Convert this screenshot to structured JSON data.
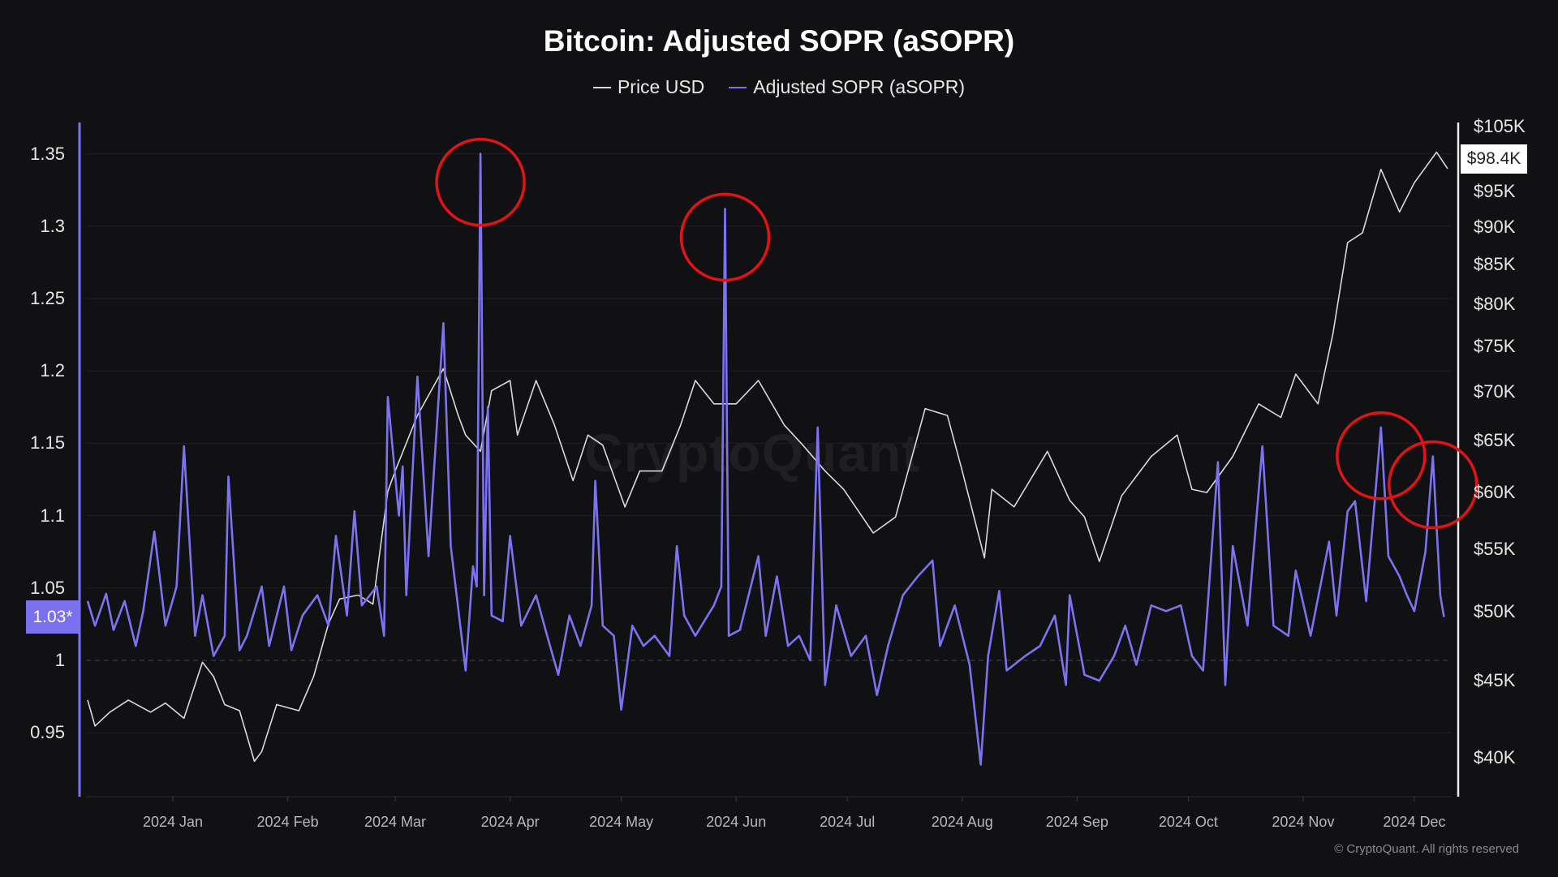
{
  "chart_data": {
    "type": "line",
    "title": "Bitcoin: Adjusted SOPR (aSOPR)",
    "legend_position": "top-center",
    "grid": true,
    "x_ticks": [
      "2024 Jan",
      "2024 Feb",
      "2024 Mar",
      "2024 Apr",
      "2024 May",
      "2024 Jun",
      "2024 Jul",
      "2024 Aug",
      "2024 Sep",
      "2024 Oct",
      "2024 Nov",
      "2024 Dec"
    ],
    "x_tick_dates": [
      "2024-01-01",
      "2024-02-01",
      "2024-03-01",
      "2024-04-01",
      "2024-05-01",
      "2024-06-01",
      "2024-07-01",
      "2024-08-01",
      "2024-09-01",
      "2024-10-01",
      "2024-11-01",
      "2024-12-01"
    ],
    "xlim": [
      "2023-12-09",
      "2024-12-10"
    ],
    "left_axis": {
      "scale": "linear",
      "ylim": [
        0.93,
        1.37
      ],
      "ticks": [
        0.95,
        1,
        1.05,
        1.1,
        1.15,
        1.2,
        1.25,
        1.3,
        1.35
      ],
      "tick_labels": [
        "0.95",
        "1",
        "1.05",
        "1.1",
        "1.15",
        "1.2",
        "1.25",
        "1.3",
        "1.35"
      ],
      "reference_line": 1
    },
    "right_axis": {
      "scale": "log",
      "ylim": [
        37000,
        107000
      ],
      "ticks": [
        40000,
        45000,
        50000,
        55000,
        60000,
        65000,
        70000,
        75000,
        80000,
        85000,
        90000,
        95000,
        105000
      ],
      "tick_labels": [
        "$40K",
        "$45K",
        "$50K",
        "$55K",
        "$60K",
        "$65K",
        "$70K",
        "$75K",
        "$80K",
        "$85K",
        "$90K",
        "$95K",
        "$105K"
      ]
    },
    "current_labels": {
      "asopr": "1.03*",
      "price": "$98.4K"
    },
    "series": [
      {
        "name": "Price USD",
        "axis": "right",
        "color": "#d9d9dc",
        "points": [
          [
            "2023-12-09",
            43700
          ],
          [
            "2023-12-11",
            42000
          ],
          [
            "2023-12-15",
            42900
          ],
          [
            "2023-12-20",
            43700
          ],
          [
            "2023-12-26",
            42900
          ],
          [
            "2023-12-30",
            43500
          ],
          [
            "2024-01-04",
            42500
          ],
          [
            "2024-01-09",
            46300
          ],
          [
            "2024-01-12",
            45300
          ],
          [
            "2024-01-15",
            43400
          ],
          [
            "2024-01-19",
            43000
          ],
          [
            "2024-01-23",
            39800
          ],
          [
            "2024-01-25",
            40400
          ],
          [
            "2024-01-29",
            43400
          ],
          [
            "2024-02-04",
            43000
          ],
          [
            "2024-02-08",
            45300
          ],
          [
            "2024-02-12",
            49100
          ],
          [
            "2024-02-15",
            51000
          ],
          [
            "2024-02-20",
            51300
          ],
          [
            "2024-02-24",
            50600
          ],
          [
            "2024-02-28",
            60100
          ],
          [
            "2024-03-01",
            62000
          ],
          [
            "2024-03-07",
            67500
          ],
          [
            "2024-03-14",
            72500
          ],
          [
            "2024-03-18",
            67500
          ],
          [
            "2024-03-20",
            65500
          ],
          [
            "2024-03-24",
            63900
          ],
          [
            "2024-03-27",
            70100
          ],
          [
            "2024-04-01",
            71200
          ],
          [
            "2024-04-03",
            65500
          ],
          [
            "2024-04-08",
            71200
          ],
          [
            "2024-04-13",
            66500
          ],
          [
            "2024-04-18",
            61100
          ],
          [
            "2024-04-22",
            65500
          ],
          [
            "2024-04-26",
            64500
          ],
          [
            "2024-05-02",
            58700
          ],
          [
            "2024-05-06",
            62000
          ],
          [
            "2024-05-12",
            62000
          ],
          [
            "2024-05-17",
            66500
          ],
          [
            "2024-05-21",
            71200
          ],
          [
            "2024-05-26",
            68700
          ],
          [
            "2024-06-01",
            68700
          ],
          [
            "2024-06-07",
            71200
          ],
          [
            "2024-06-14",
            66500
          ],
          [
            "2024-06-19",
            64500
          ],
          [
            "2024-06-25",
            62000
          ],
          [
            "2024-06-30",
            60300
          ],
          [
            "2024-07-08",
            56400
          ],
          [
            "2024-07-14",
            57800
          ],
          [
            "2024-07-22",
            68200
          ],
          [
            "2024-07-28",
            67500
          ],
          [
            "2024-08-01",
            62000
          ],
          [
            "2024-08-07",
            54300
          ],
          [
            "2024-08-09",
            60300
          ],
          [
            "2024-08-15",
            58700
          ],
          [
            "2024-08-24",
            63900
          ],
          [
            "2024-08-30",
            59300
          ],
          [
            "2024-09-03",
            57800
          ],
          [
            "2024-09-07",
            54000
          ],
          [
            "2024-09-13",
            59700
          ],
          [
            "2024-09-21",
            63400
          ],
          [
            "2024-09-28",
            65500
          ],
          [
            "2024-10-02",
            60300
          ],
          [
            "2024-10-06",
            60000
          ],
          [
            "2024-10-13",
            63400
          ],
          [
            "2024-10-20",
            68700
          ],
          [
            "2024-10-26",
            67300
          ],
          [
            "2024-10-30",
            71900
          ],
          [
            "2024-11-05",
            68700
          ],
          [
            "2024-11-09",
            76400
          ],
          [
            "2024-11-13",
            87900
          ],
          [
            "2024-11-17",
            89200
          ],
          [
            "2024-11-22",
            98300
          ],
          [
            "2024-11-27",
            92100
          ],
          [
            "2024-12-01",
            96300
          ],
          [
            "2024-12-07",
            100900
          ],
          [
            "2024-12-10",
            98400
          ]
        ]
      },
      {
        "name": "Adjusted SOPR (aSOPR)",
        "axis": "left",
        "color": "#7d72f0",
        "points": [
          [
            "2023-12-09",
            1.041
          ],
          [
            "2023-12-11",
            1.024
          ],
          [
            "2023-12-14",
            1.046
          ],
          [
            "2023-12-16",
            1.021
          ],
          [
            "2023-12-19",
            1.041
          ],
          [
            "2023-12-22",
            1.01
          ],
          [
            "2023-12-24",
            1.034
          ],
          [
            "2023-12-27",
            1.089
          ],
          [
            "2023-12-30",
            1.024
          ],
          [
            "2024-01-02",
            1.051
          ],
          [
            "2024-01-04",
            1.148
          ],
          [
            "2024-01-07",
            1.017
          ],
          [
            "2024-01-09",
            1.045
          ],
          [
            "2024-01-12",
            1.003
          ],
          [
            "2024-01-15",
            1.017
          ],
          [
            "2024-01-16",
            1.127
          ],
          [
            "2024-01-19",
            1.007
          ],
          [
            "2024-01-21",
            1.017
          ],
          [
            "2024-01-25",
            1.051
          ],
          [
            "2024-01-27",
            1.01
          ],
          [
            "2024-01-31",
            1.051
          ],
          [
            "2024-02-02",
            1.007
          ],
          [
            "2024-02-05",
            1.031
          ],
          [
            "2024-02-09",
            1.045
          ],
          [
            "2024-02-12",
            1.024
          ],
          [
            "2024-02-14",
            1.086
          ],
          [
            "2024-02-17",
            1.031
          ],
          [
            "2024-02-19",
            1.103
          ],
          [
            "2024-02-21",
            1.038
          ],
          [
            "2024-02-25",
            1.051
          ],
          [
            "2024-02-27",
            1.017
          ],
          [
            "2024-02-28",
            1.182
          ],
          [
            "2024-03-02",
            1.1
          ],
          [
            "2024-03-03",
            1.134
          ],
          [
            "2024-03-04",
            1.045
          ],
          [
            "2024-03-07",
            1.196
          ],
          [
            "2024-03-10",
            1.072
          ],
          [
            "2024-03-14",
            1.233
          ],
          [
            "2024-03-16",
            1.079
          ],
          [
            "2024-03-20",
            0.993
          ],
          [
            "2024-03-22",
            1.065
          ],
          [
            "2024-03-23",
            1.051
          ],
          [
            "2024-03-24",
            1.35
          ],
          [
            "2024-03-25",
            1.045
          ],
          [
            "2024-03-26",
            1.175
          ],
          [
            "2024-03-27",
            1.031
          ],
          [
            "2024-03-30",
            1.027
          ],
          [
            "2024-04-01",
            1.086
          ],
          [
            "2024-04-04",
            1.024
          ],
          [
            "2024-04-08",
            1.045
          ],
          [
            "2024-04-11",
            1.017
          ],
          [
            "2024-04-14",
            0.99
          ],
          [
            "2024-04-17",
            1.031
          ],
          [
            "2024-04-20",
            1.01
          ],
          [
            "2024-04-23",
            1.038
          ],
          [
            "2024-04-24",
            1.124
          ],
          [
            "2024-04-26",
            1.024
          ],
          [
            "2024-04-29",
            1.017
          ],
          [
            "2024-05-01",
            0.966
          ],
          [
            "2024-05-04",
            1.024
          ],
          [
            "2024-05-07",
            1.01
          ],
          [
            "2024-05-10",
            1.017
          ],
          [
            "2024-05-14",
            1.003
          ],
          [
            "2024-05-16",
            1.079
          ],
          [
            "2024-05-18",
            1.031
          ],
          [
            "2024-05-21",
            1.017
          ],
          [
            "2024-05-26",
            1.038
          ],
          [
            "2024-05-28",
            1.051
          ],
          [
            "2024-05-29",
            1.312
          ],
          [
            "2024-05-30",
            1.017
          ],
          [
            "2024-06-02",
            1.021
          ],
          [
            "2024-06-07",
            1.072
          ],
          [
            "2024-06-09",
            1.017
          ],
          [
            "2024-06-12",
            1.058
          ],
          [
            "2024-06-15",
            1.01
          ],
          [
            "2024-06-18",
            1.017
          ],
          [
            "2024-06-21",
            1.0
          ],
          [
            "2024-06-23",
            1.161
          ],
          [
            "2024-06-25",
            0.983
          ],
          [
            "2024-06-28",
            1.038
          ],
          [
            "2024-07-02",
            1.003
          ],
          [
            "2024-07-06",
            1.017
          ],
          [
            "2024-07-09",
            0.976
          ],
          [
            "2024-07-12",
            1.01
          ],
          [
            "2024-07-16",
            1.045
          ],
          [
            "2024-07-20",
            1.058
          ],
          [
            "2024-07-24",
            1.069
          ],
          [
            "2024-07-26",
            1.01
          ],
          [
            "2024-07-30",
            1.038
          ],
          [
            "2024-08-03",
            0.997
          ],
          [
            "2024-08-06",
            0.928
          ],
          [
            "2024-08-08",
            1.003
          ],
          [
            "2024-08-11",
            1.048
          ],
          [
            "2024-08-13",
            0.993
          ],
          [
            "2024-08-18",
            1.003
          ],
          [
            "2024-08-22",
            1.01
          ],
          [
            "2024-08-26",
            1.031
          ],
          [
            "2024-08-29",
            0.983
          ],
          [
            "2024-08-30",
            1.045
          ],
          [
            "2024-09-03",
            0.99
          ],
          [
            "2024-09-07",
            0.986
          ],
          [
            "2024-09-11",
            1.003
          ],
          [
            "2024-09-14",
            1.024
          ],
          [
            "2024-09-17",
            0.997
          ],
          [
            "2024-09-21",
            1.038
          ],
          [
            "2024-09-25",
            1.034
          ],
          [
            "2024-09-29",
            1.038
          ],
          [
            "2024-10-02",
            1.003
          ],
          [
            "2024-10-05",
            0.993
          ],
          [
            "2024-10-09",
            1.137
          ],
          [
            "2024-10-11",
            0.983
          ],
          [
            "2024-10-13",
            1.079
          ],
          [
            "2024-10-17",
            1.024
          ],
          [
            "2024-10-21",
            1.148
          ],
          [
            "2024-10-24",
            1.024
          ],
          [
            "2024-10-28",
            1.017
          ],
          [
            "2024-10-30",
            1.062
          ],
          [
            "2024-11-03",
            1.017
          ],
          [
            "2024-11-08",
            1.082
          ],
          [
            "2024-11-10",
            1.031
          ],
          [
            "2024-11-13",
            1.103
          ],
          [
            "2024-11-15",
            1.11
          ],
          [
            "2024-11-18",
            1.041
          ],
          [
            "2024-11-22",
            1.161
          ],
          [
            "2024-11-24",
            1.072
          ],
          [
            "2024-11-27",
            1.058
          ],
          [
            "2024-11-29",
            1.045
          ],
          [
            "2024-12-01",
            1.034
          ],
          [
            "2024-12-04",
            1.075
          ],
          [
            "2024-12-06",
            1.141
          ],
          [
            "2024-12-08",
            1.045
          ],
          [
            "2024-12-09",
            1.03
          ]
        ]
      }
    ],
    "annotations": [
      {
        "type": "circle",
        "color": "#e01414",
        "date": "2024-03-24",
        "value": 1.35,
        "axis": "left"
      },
      {
        "type": "circle",
        "color": "#e01414",
        "date": "2024-05-29",
        "value": 1.312,
        "axis": "left"
      },
      {
        "type": "circle",
        "color": "#e01414",
        "date": "2024-11-22",
        "value": 1.161,
        "axis": "left"
      },
      {
        "type": "circle",
        "color": "#e01414",
        "date": "2024-12-06",
        "value": 1.141,
        "axis": "left"
      }
    ]
  },
  "legend": {
    "price_label": "Price USD",
    "asopr_label": "Adjusted SOPR (aSOPR)",
    "price_color": "#d9d9dc",
    "asopr_color": "#7d72f0"
  },
  "watermark": "CryptoQuant",
  "footer": "© CryptoQuant. All rights reserved"
}
